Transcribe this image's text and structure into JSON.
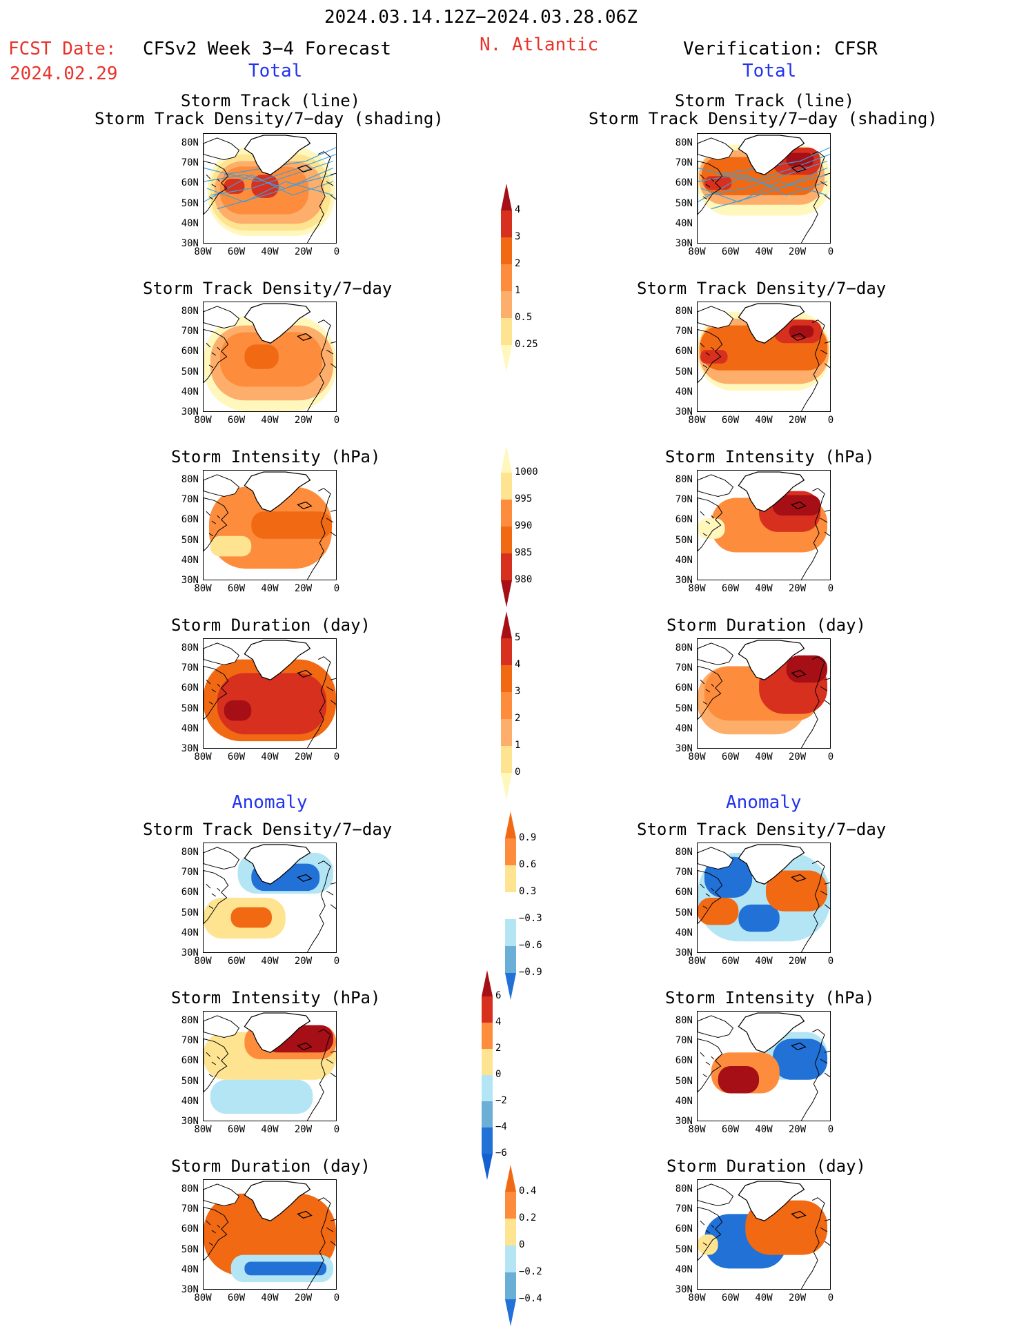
{
  "header": {
    "date_range": "2024.03.14.12Z−2024.03.28.06Z",
    "fcst_label": "FCST Date:",
    "fcst_date": "2024.02.29",
    "model_title": "CFSv2 Week 3−4 Forecast",
    "region": "N. Atlantic",
    "verification": "Verification: CFSR"
  },
  "sections": {
    "total": "Total",
    "anomaly": "Anomaly"
  },
  "axes": {
    "lat_ticks": [
      "80N",
      "70N",
      "60N",
      "50N",
      "40N",
      "30N"
    ],
    "lon_ticks": [
      "80W",
      "60W",
      "40W",
      "20W",
      "0"
    ]
  },
  "panels": {
    "track_title_l1": "Storm Track (line)",
    "track_title_l2": "Storm Track Density/7−day (shading)",
    "density": "Storm Track Density/7−day",
    "intensity": "Storm Intensity (hPa)",
    "duration": "Storm Duration (day)"
  },
  "colorbars": {
    "density": [
      "4",
      "3",
      "2",
      "1",
      "0.5",
      "0.25"
    ],
    "intensity": [
      "1000",
      "995",
      "990",
      "985",
      "980"
    ],
    "duration": [
      "5",
      "4",
      "3",
      "2",
      "1",
      "0"
    ],
    "density_anom": [
      "0.9",
      "0.6",
      "0.3",
      "−0.3",
      "−0.6",
      "−0.9"
    ],
    "intensity_anom": [
      "6",
      "4",
      "2",
      "0",
      "−2",
      "−4",
      "−6"
    ],
    "duration_anom": [
      "0.4",
      "0.2",
      "0",
      "−0.2",
      "−0.4"
    ]
  },
  "colors": {
    "dark_red": "#a50f15",
    "red": "#d7301f",
    "orange_red": "#f16913",
    "orange": "#fd8d3c",
    "light_orange": "#fdae6b",
    "yellow": "#fee391",
    "pale_yellow": "#fff7bc",
    "light_blue": "#b3e5f5",
    "mid_blue": "#6baed6",
    "blue": "#2171d6",
    "track_line": "#3aa0dd"
  }
}
